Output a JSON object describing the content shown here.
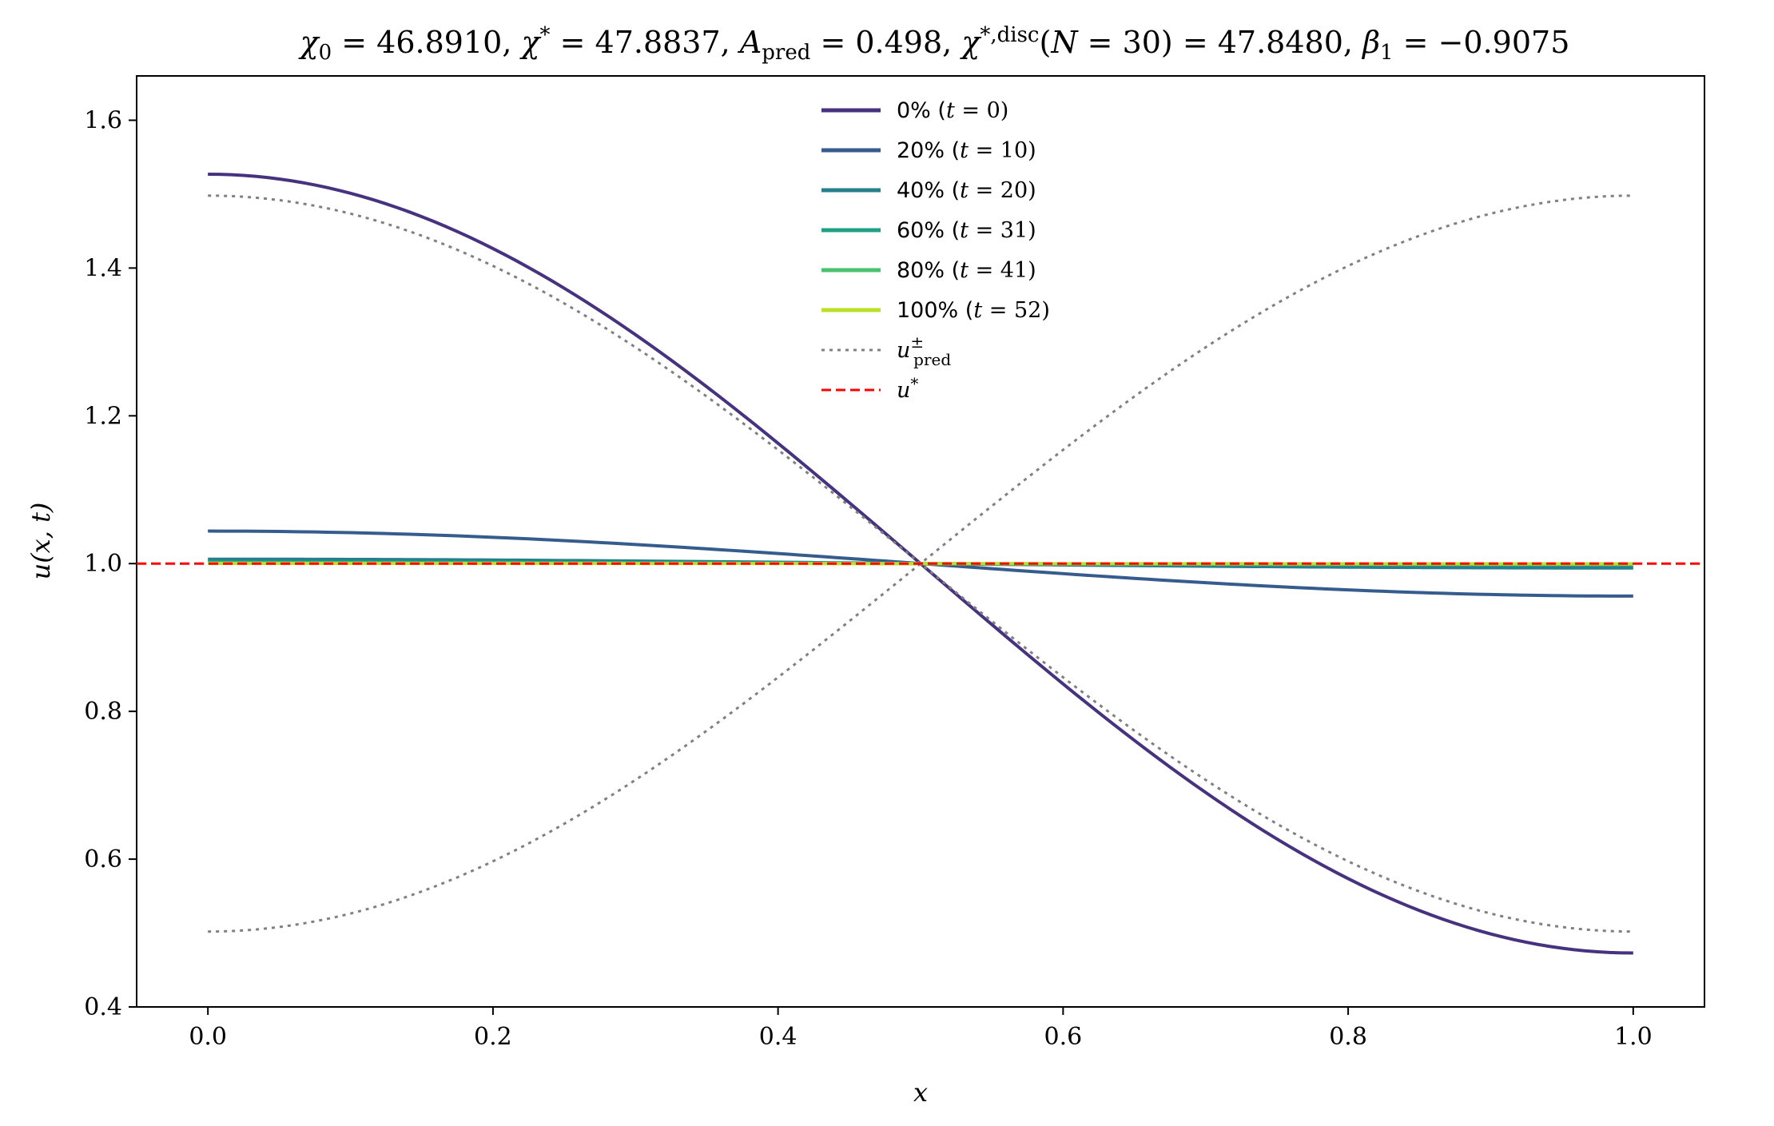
{
  "chart_data": {
    "type": "line",
    "title": "χ₀ = 46.8910,  χ* = 47.8837,  A_pred = 0.498,  χ*,disc(N = 30) = 47.8480,  β₁ = −0.9075",
    "xlabel": "x",
    "ylabel": "u(x, t)",
    "xlim": [
      -0.05,
      1.05
    ],
    "ylim": [
      0.4,
      1.66
    ],
    "xticks": [
      0.0,
      0.2,
      0.4,
      0.6,
      0.8,
      1.0
    ],
    "xtick_labels": [
      "0.0",
      "0.2",
      "0.4",
      "0.6",
      "0.8",
      "1.0"
    ],
    "yticks": [
      0.4,
      0.6,
      0.8,
      1.0,
      1.2,
      1.4,
      1.6
    ],
    "ytick_labels": [
      "0.4",
      "0.6",
      "0.8",
      "1.0",
      "1.2",
      "1.4",
      "1.6"
    ],
    "grid": false,
    "legend_position": "top-center",
    "legend": [
      {
        "name": "0% (t = 0)",
        "color": "#46327e",
        "style": "solid"
      },
      {
        "name": "20% (t = 10)",
        "color": "#365c8d",
        "style": "solid"
      },
      {
        "name": "40% (t = 20)",
        "color": "#277f8e",
        "style": "solid"
      },
      {
        "name": "60% (t = 31)",
        "color": "#1fa187",
        "style": "solid"
      },
      {
        "name": "80% (t = 41)",
        "color": "#4ac16d",
        "style": "solid"
      },
      {
        "name": "100% (t = 52)",
        "color": "#bddf26",
        "style": "solid"
      },
      {
        "name": "u±pred",
        "color": "#808080",
        "style": "dotted"
      },
      {
        "name": "u*",
        "color": "#ff0000",
        "style": "dashed"
      }
    ],
    "series": [
      {
        "name": "0% (t = 0)",
        "color": "#46327e",
        "style": "solid",
        "kind": "cos",
        "x0": 0.0,
        "x1": 1.0,
        "center": 1.0,
        "amplitude": 0.527
      },
      {
        "name": "20% (t = 10)",
        "color": "#365c8d",
        "style": "solid",
        "kind": "cos",
        "x0": 0.0,
        "x1": 1.0,
        "center": 1.0,
        "amplitude": 0.044
      },
      {
        "name": "40% (t = 20)",
        "color": "#277f8e",
        "style": "solid",
        "kind": "cos",
        "x0": 0.0,
        "x1": 1.0,
        "center": 1.0,
        "amplitude": 0.006
      },
      {
        "name": "60% (t = 31)",
        "color": "#1fa187",
        "style": "solid",
        "kind": "cos",
        "x0": 0.0,
        "x1": 1.0,
        "center": 1.0,
        "amplitude": 0.002
      },
      {
        "name": "80% (t = 41)",
        "color": "#4ac16d",
        "style": "solid",
        "kind": "cos",
        "x0": 0.0,
        "x1": 1.0,
        "center": 1.0,
        "amplitude": 0.0008
      },
      {
        "name": "100% (t = 52)",
        "color": "#bddf26",
        "style": "solid",
        "kind": "cos",
        "x0": 0.0,
        "x1": 1.0,
        "center": 1.0,
        "amplitude": 0.0003
      },
      {
        "name": "u+pred",
        "color": "#808080",
        "style": "dotted",
        "kind": "cos",
        "x0": 0.0,
        "x1": 1.0,
        "center": 1.0,
        "amplitude": 0.498
      },
      {
        "name": "u-pred",
        "color": "#808080",
        "style": "dotted",
        "kind": "cos",
        "x0": 0.0,
        "x1": 1.0,
        "center": 1.0,
        "amplitude": -0.498
      },
      {
        "name": "u*",
        "color": "#ff0000",
        "style": "dashed",
        "kind": "hline",
        "x0": -0.05,
        "x1": 1.05,
        "center": 1.0,
        "amplitude": 0.0
      }
    ]
  }
}
